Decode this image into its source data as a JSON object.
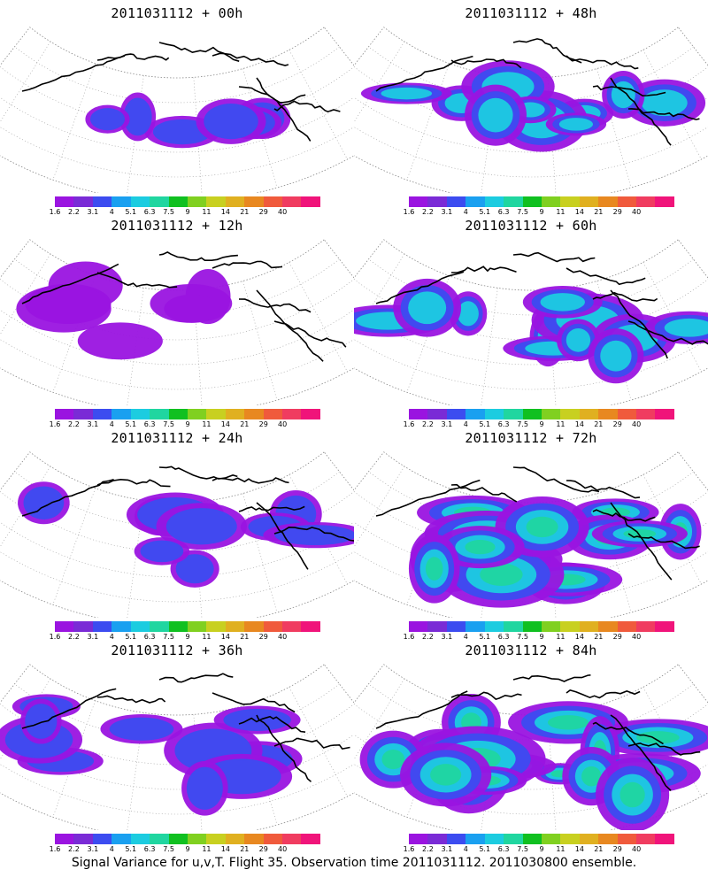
{
  "panels": [
    {
      "title": "2011031112 + 00h",
      "coverage": 0.18,
      "intensity": 0.35
    },
    {
      "title": "2011031112 + 48h",
      "coverage": 0.5,
      "intensity": 0.5
    },
    {
      "title": "2011031112 + 12h",
      "coverage": 0.28,
      "intensity": 0.25
    },
    {
      "title": "2011031112 + 60h",
      "coverage": 0.6,
      "intensity": 0.55
    },
    {
      "title": "2011031112 + 24h",
      "coverage": 0.4,
      "intensity": 0.35
    },
    {
      "title": "2011031112 + 72h",
      "coverage": 0.75,
      "intensity": 0.7
    },
    {
      "title": "2011031112 + 36h",
      "coverage": 0.5,
      "intensity": 0.4
    },
    {
      "title": "2011031112 + 84h",
      "coverage": 0.85,
      "intensity": 0.8
    }
  ],
  "colorbar": {
    "ticks": [
      "1.6",
      "2.2",
      "3.1",
      "4",
      "5.1",
      "6.3",
      "7.5",
      "9",
      "11",
      "14",
      "21",
      "29",
      "40"
    ],
    "colors": [
      "#9a14e0",
      "#7a2bd6",
      "#3c4cf0",
      "#1aa0f0",
      "#1ccce0",
      "#20d6a0",
      "#10c020",
      "#80d020",
      "#c8d020",
      "#e0b020",
      "#e88820",
      "#f05a3c",
      "#f03c60",
      "#f0147a"
    ]
  },
  "footer": "Signal Variance for u,v,T. Flight 35. Observation time 2011031112. 2011030800 ensemble."
}
